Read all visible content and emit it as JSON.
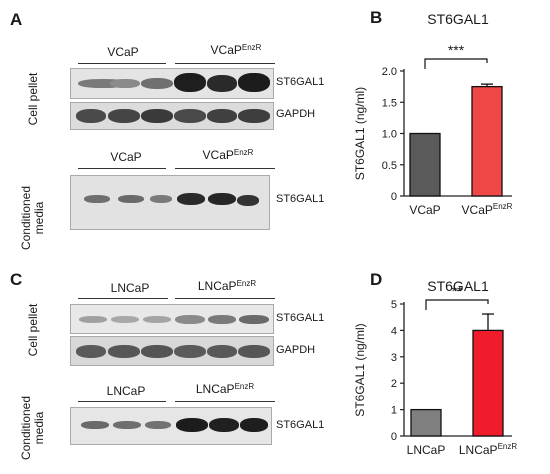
{
  "panel_A": {
    "letter": "A",
    "top": {
      "group1": "VCaP",
      "group2_base": "VCaP",
      "group2_sup": "EnzR"
    },
    "side_top": "Cell pellet",
    "blot1_label": "ST6GAL1",
    "blot2_label": "GAPDH",
    "bottom": {
      "group1": "VCaP",
      "group2_base": "VCaP",
      "group2_sup": "EnzR"
    },
    "side_bottom_1": "Conditioned",
    "side_bottom_2": "media",
    "blot3_label": "ST6GAL1"
  },
  "panel_C": {
    "letter": "C",
    "top": {
      "group1": "LNCaP",
      "group2_base": "LNCaP",
      "group2_sup": "EnzR"
    },
    "side_top": "Cell pellet",
    "blot1_label": "ST6GAL1",
    "blot2_label": "GAPDH",
    "bottom": {
      "group1": "LNCaP",
      "group2_base": "LNCaP",
      "group2_sup": "EnzR"
    },
    "side_bottom_1": "Conditioned",
    "side_bottom_2": "media",
    "blot3_label": "ST6GAL1"
  },
  "chart_data": [
    {
      "panel": "B",
      "type": "bar",
      "title": "ST6GAL1",
      "ylabel": "ST6GAL1 (ng/ml)",
      "ylim": [
        0,
        2.0
      ],
      "yticks": [
        "0",
        "0.5",
        "1.0",
        "1.5",
        "2.0"
      ],
      "ytick_values": [
        0,
        0.5,
        1.0,
        1.5,
        2.0
      ],
      "categories": [
        {
          "base": "VCaP",
          "sup": ""
        },
        {
          "base": "VCaP",
          "sup": "EnzR"
        }
      ],
      "values": [
        1.0,
        1.75
      ],
      "errors": [
        0,
        0.04
      ],
      "colors": [
        "#5a5a5a",
        "#f04747"
      ],
      "significance": "***"
    },
    {
      "panel": "D",
      "type": "bar",
      "title": "ST6GAL1",
      "ylabel": "ST6GAL1 (ng/ml)",
      "ylim": [
        0,
        5
      ],
      "yticks": [
        "0",
        "1",
        "2",
        "3",
        "4",
        "5"
      ],
      "ytick_values": [
        0,
        1,
        2,
        3,
        4,
        5
      ],
      "categories": [
        {
          "base": "LNCaP",
          "sup": ""
        },
        {
          "base": "LNCaP",
          "sup": "EnzR"
        }
      ],
      "values": [
        1.0,
        4.0
      ],
      "errors": [
        0,
        0.62
      ],
      "colors": [
        "#808080",
        "#f01c2c"
      ],
      "significance": "**"
    }
  ]
}
